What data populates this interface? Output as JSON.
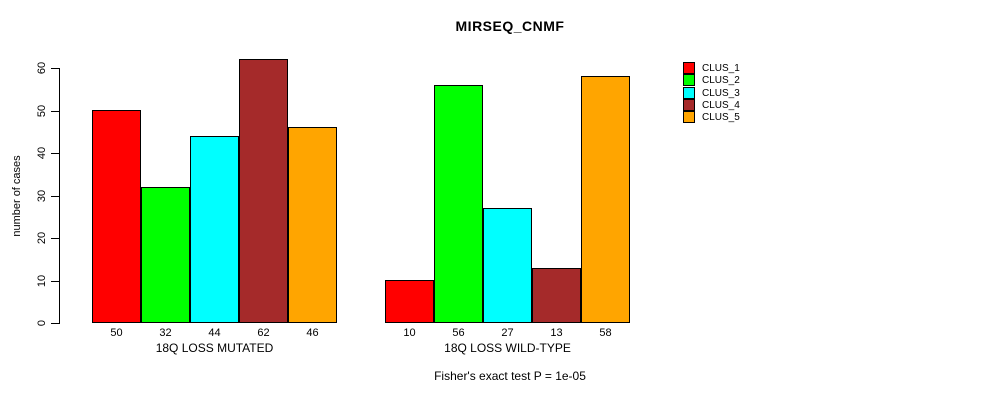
{
  "chart_data": {
    "type": "bar",
    "title": "MIRSEQ_CNMF",
    "ylabel": "number of cases",
    "xlabel": "",
    "ylim": [
      0,
      60
    ],
    "yticks": [
      0,
      10,
      20,
      30,
      40,
      50,
      60
    ],
    "grid": false,
    "legend_position": "right",
    "categories": [
      "18Q LOSS MUTATED",
      "18Q LOSS WILD-TYPE"
    ],
    "series": [
      {
        "name": "CLUS_1",
        "color": "#FF0000",
        "values": [
          50,
          10
        ]
      },
      {
        "name": "CLUS_2",
        "color": "#00FF00",
        "values": [
          32,
          56
        ]
      },
      {
        "name": "CLUS_3",
        "color": "#00FFFF",
        "values": [
          44,
          27
        ]
      },
      {
        "name": "CLUS_4",
        "color": "#A52A2A",
        "values": [
          62,
          13
        ]
      },
      {
        "name": "CLUS_5",
        "color": "#FFA500",
        "values": [
          46,
          58
        ]
      }
    ],
    "caption": "Fisher's exact test P = 1e-05"
  }
}
